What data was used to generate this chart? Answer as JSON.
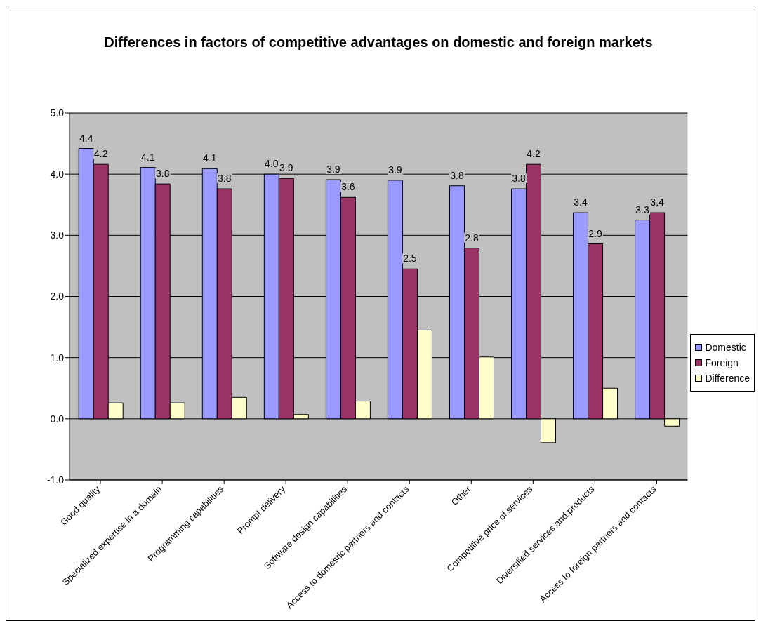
{
  "chart_data": {
    "type": "bar",
    "title": "Differences in factors of competitive advantages on domestic and foreign markets",
    "categories": [
      "Good quality",
      "Specialized expertise in a domain",
      "Programming capabilities",
      "Prompt delivery",
      "Software design capabilities",
      "Access to domestic partners and contacts",
      "Other",
      "Competitive price of services",
      "Diversified services and products",
      "Access to foreign partners and contacts"
    ],
    "series": [
      {
        "name": "Domestic",
        "color": "#9999ff",
        "values": [
          4.42,
          4.11,
          4.09,
          4.0,
          3.91,
          3.9,
          3.81,
          3.76,
          3.37,
          3.25
        ],
        "value_labels": [
          "4.4",
          "4.1",
          "4.1",
          "4.0",
          "3.9",
          "3.9",
          "3.8",
          "3.8",
          "3.4",
          "3.3"
        ]
      },
      {
        "name": "Foreign",
        "color": "#993366",
        "values": [
          4.16,
          3.84,
          3.76,
          3.93,
          3.62,
          2.45,
          2.79,
          4.16,
          2.86,
          3.37
        ],
        "value_labels": [
          "4.2",
          "3.8",
          "3.8",
          "3.9",
          "3.6",
          "2.5",
          "2.8",
          "4.2",
          "2.9",
          "3.4"
        ]
      },
      {
        "name": "Difference",
        "color": "#ffffcc",
        "values": [
          0.26,
          0.26,
          0.35,
          0.07,
          0.29,
          1.45,
          1.01,
          -0.39,
          0.5,
          -0.12
        ]
      }
    ],
    "ylim": [
      -1,
      5
    ],
    "yticks": [
      {
        "value": -1,
        "label": "-1.0"
      },
      {
        "value": 0,
        "label": "0.0"
      },
      {
        "value": 1,
        "label": "1.0"
      },
      {
        "value": 2,
        "label": "2.0"
      },
      {
        "value": 3,
        "label": "3.0"
      },
      {
        "value": 4,
        "label": "4.0"
      },
      {
        "value": 5,
        "label": "5.0"
      }
    ],
    "grid": "y",
    "legend": "right"
  }
}
